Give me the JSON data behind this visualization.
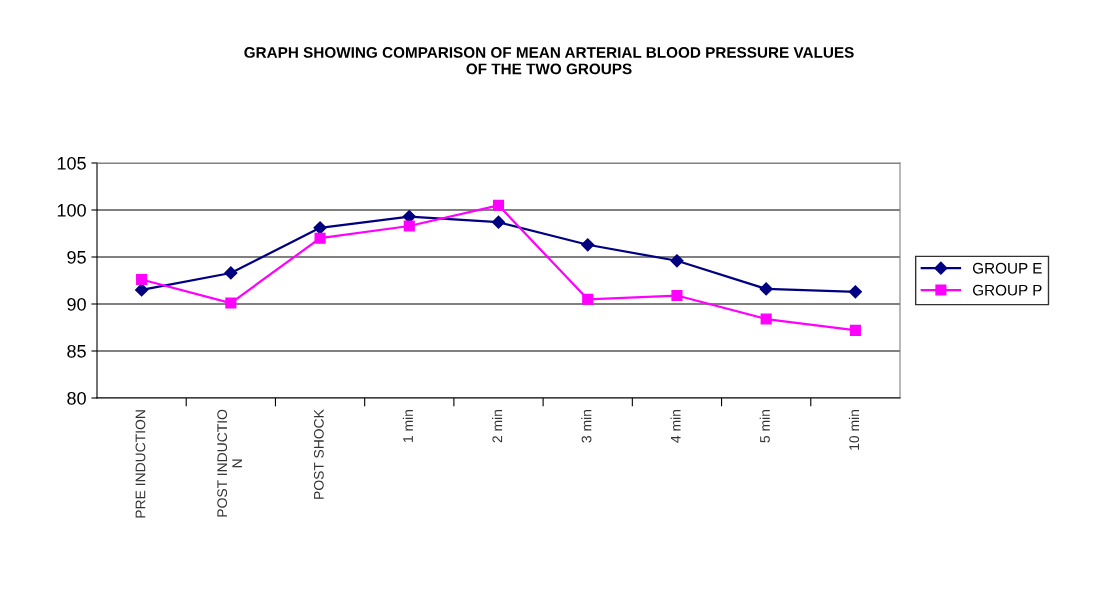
{
  "chart_data": {
    "type": "line",
    "title": "GRAPH SHOWING COMPARISON OF MEAN ARTERIAL BLOOD PRESSURE VALUES\nOF THE TWO GROUPS",
    "categories": [
      "PRE INDUCTION",
      "POST INDUCTIO\nN",
      "POST SHOCK",
      "1 min",
      "2 min",
      "3 min",
      "4 min",
      "5 min",
      "10 min"
    ],
    "series": [
      {
        "name": "GROUP E",
        "color": "#000080",
        "marker": "diamond",
        "values": [
          91.5,
          93.3,
          98.1,
          99.3,
          98.7,
          96.3,
          94.6,
          91.6,
          91.3
        ]
      },
      {
        "name": "GROUP P",
        "color": "#ff00ff",
        "marker": "square",
        "values": [
          92.6,
          90.1,
          97.0,
          98.3,
          100.5,
          90.5,
          90.9,
          88.4,
          87.2
        ]
      }
    ],
    "ylim": [
      80,
      105
    ],
    "yticks": [
      80,
      85,
      90,
      95,
      100,
      105
    ],
    "grid": "y",
    "legend": "right",
    "line_style": "solid"
  }
}
